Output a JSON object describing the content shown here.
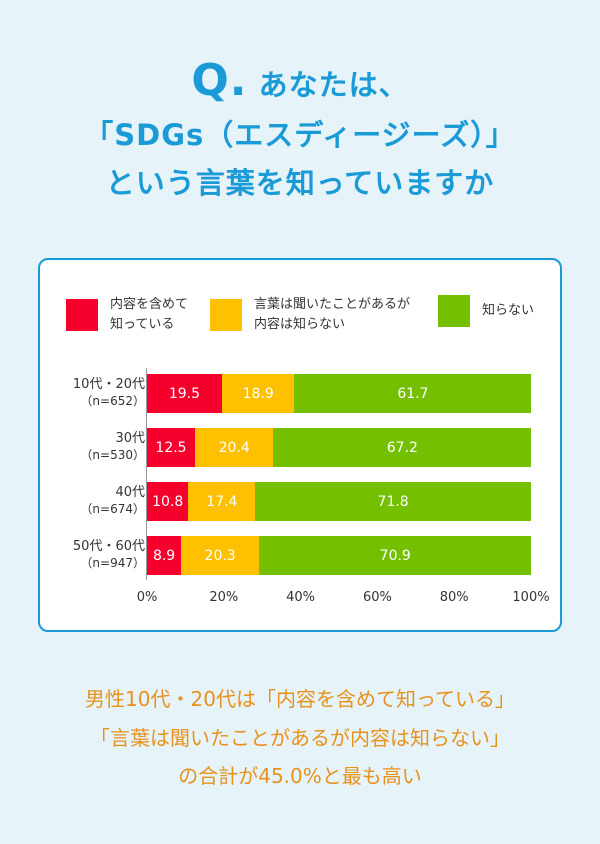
{
  "header": {
    "q": "Q.",
    "line1": "あなたは、",
    "line2": "「SDGs（エスディージーズ）」",
    "line3": "という言葉を知っていますか"
  },
  "chart_data": {
    "type": "bar",
    "orientation": "horizontal",
    "stacked": true,
    "categories": [
      {
        "label": "10代・20代",
        "n": "（n=652）"
      },
      {
        "label": "30代",
        "n": "（n=530）"
      },
      {
        "label": "40代",
        "n": "（n=674）"
      },
      {
        "label": "50代・60代",
        "n": "（n=947）"
      }
    ],
    "series": [
      {
        "name_line1": "内容を含めて",
        "name_line2": "知っている",
        "color": "#f5002d",
        "values": [
          19.5,
          12.5,
          10.8,
          8.9
        ]
      },
      {
        "name_line1": "言葉は聞いたことがあるが",
        "name_line2": "内容は知らない",
        "color": "#ffc000",
        "values": [
          18.9,
          20.4,
          17.4,
          20.3
        ]
      },
      {
        "name_line1": "知らない",
        "name_line2": "",
        "color": "#74c000",
        "values": [
          61.7,
          67.2,
          71.8,
          70.9
        ]
      }
    ],
    "xticks": [
      "0%",
      "20%",
      "40%",
      "60%",
      "80%",
      "100%"
    ],
    "xlim": [
      0,
      100
    ],
    "legend": "top"
  },
  "footer": {
    "line1": "男性10代・20代は「内容を含めて知っている」",
    "line2": "「言葉は聞いたことがあるが内容は知らない」",
    "line3": "の合計が45.0%と最も高い"
  }
}
